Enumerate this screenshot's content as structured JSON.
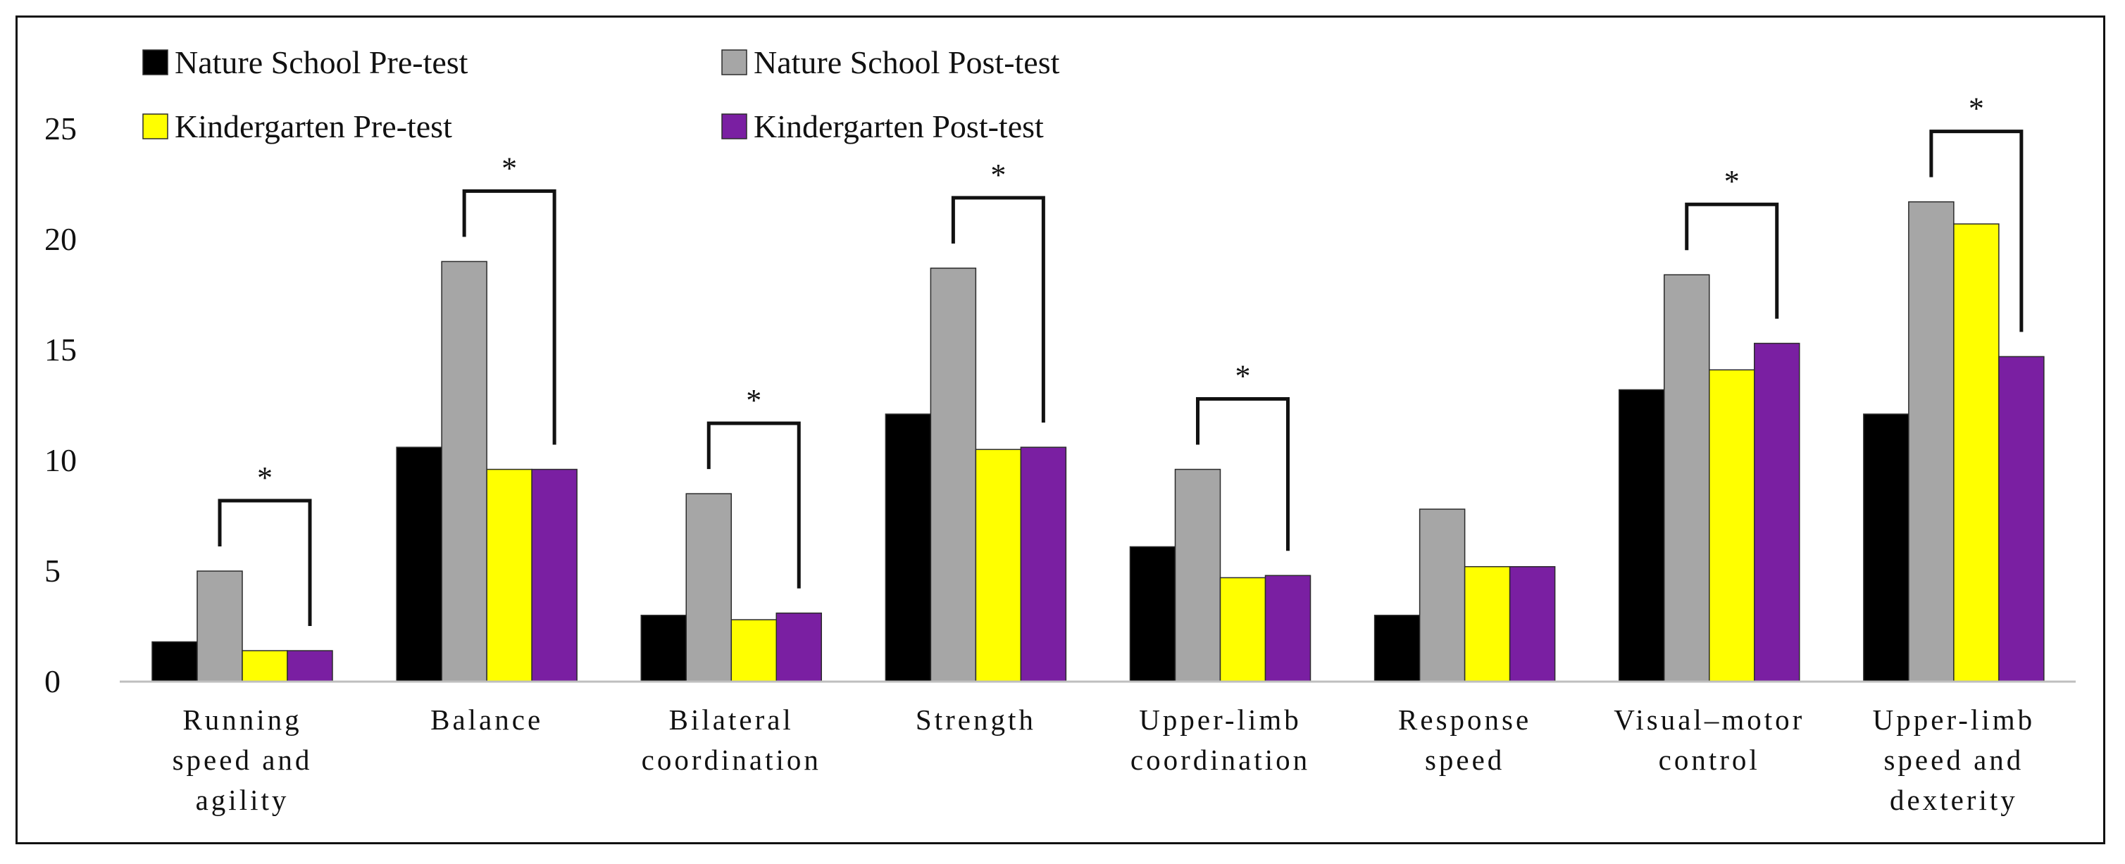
{
  "chart_data": {
    "type": "bar",
    "title": "",
    "xlabel": "",
    "ylabel": "",
    "ylim": [
      0,
      25
    ],
    "yticks": [
      0,
      5,
      10,
      15,
      20,
      25
    ],
    "grid": false,
    "legend_position": "top-left",
    "categories": [
      [
        "Running",
        "speed and",
        "agility"
      ],
      [
        "Balance"
      ],
      [
        "Bilateral",
        "coordination"
      ],
      [
        "Strength"
      ],
      [
        "Upper-limb",
        "coordination"
      ],
      [
        "Response",
        "speed"
      ],
      [
        "Visual–motor",
        "control"
      ],
      [
        "Upper-limb",
        "speed and",
        "dexterity"
      ]
    ],
    "series": [
      {
        "name": "Nature School Pre-test",
        "color": "#000000",
        "values": [
          1.8,
          10.6,
          3.0,
          12.1,
          6.1,
          3.0,
          13.2,
          12.1
        ]
      },
      {
        "name": "Nature School Post-test",
        "color": "#a6a6a6",
        "values": [
          5.0,
          19.0,
          8.5,
          18.7,
          9.6,
          7.8,
          18.4,
          21.7
        ]
      },
      {
        "name": "Kindergarten Pre-test",
        "color": "#ffff00",
        "values": [
          1.4,
          9.6,
          2.8,
          10.5,
          4.7,
          5.2,
          14.1,
          20.7
        ]
      },
      {
        "name": "Kindergarten Post-test",
        "color": "#7a1fa2",
        "values": [
          1.4,
          9.6,
          3.1,
          10.6,
          4.8,
          5.2,
          15.3,
          14.7
        ]
      }
    ],
    "significance": [
      {
        "category": 0,
        "label": "*"
      },
      {
        "category": 1,
        "label": "*"
      },
      {
        "category": 2,
        "label": "*"
      },
      {
        "category": 3,
        "label": "*"
      },
      {
        "category": 4,
        "label": "*"
      },
      {
        "category": 6,
        "label": "*"
      },
      {
        "category": 7,
        "label": "*"
      }
    ]
  }
}
